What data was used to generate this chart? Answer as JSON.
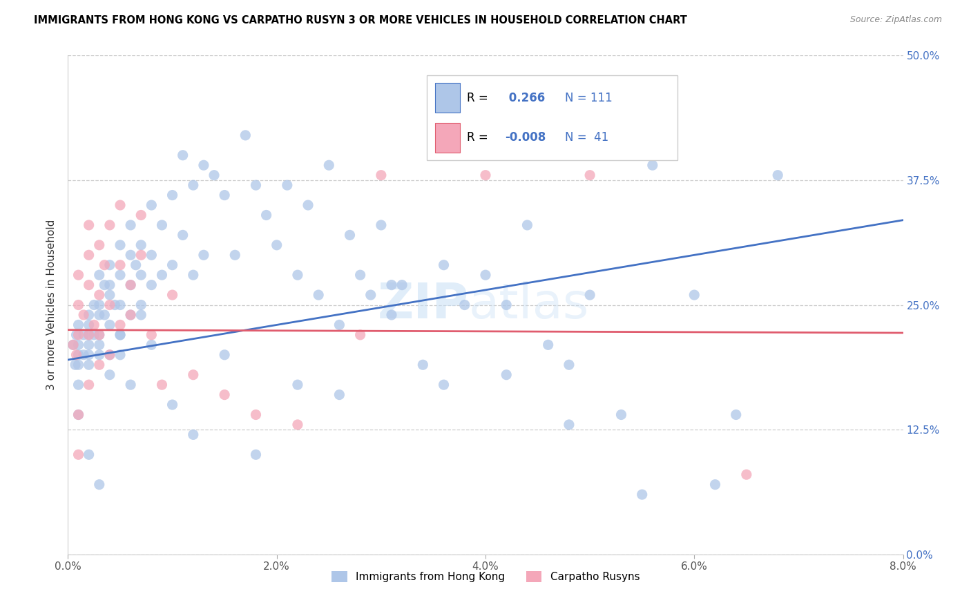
{
  "title": "IMMIGRANTS FROM HONG KONG VS CARPATHO RUSYN 3 OR MORE VEHICLES IN HOUSEHOLD CORRELATION CHART",
  "source": "Source: ZipAtlas.com",
  "xlim": [
    0.0,
    0.08
  ],
  "ylim": [
    0.0,
    0.5
  ],
  "ylabel": "3 or more Vehicles in Household",
  "legend_label1": "Immigrants from Hong Kong",
  "legend_label2": "Carpatho Rusyns",
  "R1": 0.266,
  "N1": 111,
  "R2": -0.008,
  "N2": 41,
  "color1": "#aec6e8",
  "color2": "#f4a7b9",
  "line_color1": "#4472c4",
  "line_color2": "#e05c6e",
  "blue_text": "#4472c4",
  "watermark": "ZIPatlas",
  "hk_x": [
    0.0005,
    0.0007,
    0.0008,
    0.001,
    0.001,
    0.001,
    0.001,
    0.001,
    0.0015,
    0.0015,
    0.002,
    0.002,
    0.002,
    0.002,
    0.002,
    0.002,
    0.0025,
    0.0025,
    0.003,
    0.003,
    0.003,
    0.003,
    0.003,
    0.003,
    0.0035,
    0.0035,
    0.004,
    0.004,
    0.004,
    0.004,
    0.004,
    0.0045,
    0.005,
    0.005,
    0.005,
    0.005,
    0.005,
    0.006,
    0.006,
    0.006,
    0.006,
    0.0065,
    0.007,
    0.007,
    0.007,
    0.008,
    0.008,
    0.008,
    0.009,
    0.009,
    0.01,
    0.01,
    0.011,
    0.011,
    0.012,
    0.012,
    0.013,
    0.013,
    0.014,
    0.015,
    0.016,
    0.017,
    0.018,
    0.019,
    0.02,
    0.021,
    0.022,
    0.023,
    0.024,
    0.025,
    0.026,
    0.027,
    0.028,
    0.029,
    0.03,
    0.031,
    0.032,
    0.034,
    0.036,
    0.038,
    0.04,
    0.042,
    0.044,
    0.046,
    0.048,
    0.05,
    0.053,
    0.056,
    0.06,
    0.064,
    0.068,
    0.001,
    0.002,
    0.003,
    0.004,
    0.005,
    0.006,
    0.007,
    0.008,
    0.01,
    0.012,
    0.015,
    0.018,
    0.022,
    0.026,
    0.031,
    0.036,
    0.042,
    0.048,
    0.055,
    0.062
  ],
  "hk_y": [
    0.21,
    0.19,
    0.22,
    0.2,
    0.17,
    0.23,
    0.19,
    0.21,
    0.22,
    0.2,
    0.24,
    0.21,
    0.19,
    0.22,
    0.2,
    0.23,
    0.25,
    0.22,
    0.25,
    0.22,
    0.2,
    0.28,
    0.24,
    0.21,
    0.27,
    0.24,
    0.29,
    0.26,
    0.23,
    0.2,
    0.27,
    0.25,
    0.31,
    0.28,
    0.25,
    0.22,
    0.2,
    0.33,
    0.3,
    0.27,
    0.24,
    0.29,
    0.31,
    0.28,
    0.25,
    0.35,
    0.3,
    0.27,
    0.33,
    0.28,
    0.36,
    0.29,
    0.4,
    0.32,
    0.37,
    0.28,
    0.39,
    0.3,
    0.38,
    0.36,
    0.3,
    0.42,
    0.37,
    0.34,
    0.31,
    0.37,
    0.28,
    0.35,
    0.26,
    0.39,
    0.23,
    0.32,
    0.28,
    0.26,
    0.33,
    0.27,
    0.27,
    0.19,
    0.29,
    0.25,
    0.28,
    0.25,
    0.33,
    0.21,
    0.19,
    0.26,
    0.14,
    0.39,
    0.26,
    0.14,
    0.38,
    0.14,
    0.1,
    0.07,
    0.18,
    0.22,
    0.17,
    0.24,
    0.21,
    0.15,
    0.12,
    0.2,
    0.1,
    0.17,
    0.16,
    0.24,
    0.17,
    0.18,
    0.13,
    0.06,
    0.07
  ],
  "cr_x": [
    0.0005,
    0.0008,
    0.001,
    0.001,
    0.001,
    0.001,
    0.001,
    0.0015,
    0.002,
    0.002,
    0.002,
    0.002,
    0.002,
    0.0025,
    0.003,
    0.003,
    0.003,
    0.003,
    0.0035,
    0.004,
    0.004,
    0.004,
    0.005,
    0.005,
    0.005,
    0.006,
    0.006,
    0.007,
    0.007,
    0.008,
    0.009,
    0.01,
    0.012,
    0.015,
    0.018,
    0.022,
    0.028,
    0.03,
    0.04,
    0.05,
    0.065
  ],
  "cr_y": [
    0.21,
    0.2,
    0.22,
    0.25,
    0.28,
    0.14,
    0.1,
    0.24,
    0.3,
    0.33,
    0.22,
    0.17,
    0.27,
    0.23,
    0.31,
    0.26,
    0.22,
    0.19,
    0.29,
    0.25,
    0.2,
    0.33,
    0.35,
    0.29,
    0.23,
    0.27,
    0.24,
    0.3,
    0.34,
    0.22,
    0.17,
    0.26,
    0.18,
    0.16,
    0.14,
    0.13,
    0.22,
    0.38,
    0.38,
    0.38,
    0.08
  ],
  "hk_line_x0": 0.0,
  "hk_line_x1": 0.08,
  "hk_line_y0": 0.195,
  "hk_line_y1": 0.335,
  "cr_line_x0": 0.0,
  "cr_line_x1": 0.08,
  "cr_line_y0": 0.225,
  "cr_line_y1": 0.222
}
